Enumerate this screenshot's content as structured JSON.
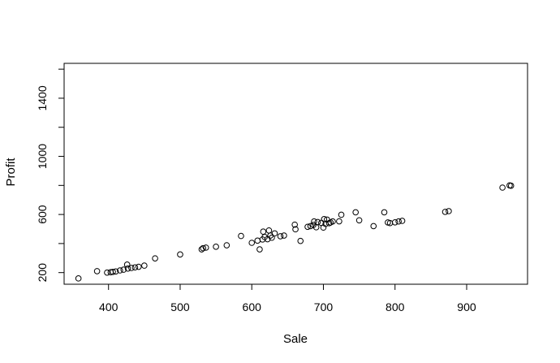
{
  "chart_data": {
    "type": "scatter",
    "xlabel": "Sale",
    "ylabel": "Profit",
    "xlim": [
      338,
      985
    ],
    "ylim": [
      120,
      1640
    ],
    "xticks": [
      400,
      500,
      600,
      700,
      800,
      900
    ],
    "yticks": [
      200,
      600,
      1000,
      1400
    ],
    "yminor": [
      400,
      800,
      1200,
      1600
    ],
    "grid": false,
    "legend": "none",
    "marker": "open-circle",
    "series": [
      {
        "points": [
          [
            358,
            160
          ],
          [
            384,
            210
          ],
          [
            398,
            200
          ],
          [
            403,
            203
          ],
          [
            406,
            205
          ],
          [
            410,
            208
          ],
          [
            416,
            215
          ],
          [
            421,
            220
          ],
          [
            426,
            255
          ],
          [
            427,
            228
          ],
          [
            432,
            232
          ],
          [
            437,
            236
          ],
          [
            442,
            240
          ],
          [
            450,
            248
          ],
          [
            465,
            298
          ],
          [
            500,
            325
          ],
          [
            530,
            360
          ],
          [
            532,
            368
          ],
          [
            536,
            372
          ],
          [
            550,
            378
          ],
          [
            565,
            388
          ],
          [
            585,
            452
          ],
          [
            600,
            405
          ],
          [
            608,
            420
          ],
          [
            611,
            360
          ],
          [
            615,
            428
          ],
          [
            616,
            482
          ],
          [
            618,
            445
          ],
          [
            622,
            430
          ],
          [
            624,
            490
          ],
          [
            626,
            455
          ],
          [
            628,
            440
          ],
          [
            632,
            470
          ],
          [
            640,
            450
          ],
          [
            645,
            455
          ],
          [
            660,
            530
          ],
          [
            661,
            498
          ],
          [
            668,
            418
          ],
          [
            678,
            515
          ],
          [
            682,
            520
          ],
          [
            686,
            528
          ],
          [
            687,
            552
          ],
          [
            690,
            512
          ],
          [
            692,
            548
          ],
          [
            697,
            542
          ],
          [
            700,
            510
          ],
          [
            701,
            568
          ],
          [
            703,
            535
          ],
          [
            705,
            565
          ],
          [
            708,
            540
          ],
          [
            710,
            545
          ],
          [
            713,
            552
          ],
          [
            722,
            553
          ],
          [
            725,
            598
          ],
          [
            745,
            615
          ],
          [
            750,
            560
          ],
          [
            770,
            520
          ],
          [
            785,
            615
          ],
          [
            790,
            545
          ],
          [
            793,
            541
          ],
          [
            800,
            546
          ],
          [
            805,
            552
          ],
          [
            810,
            556
          ],
          [
            870,
            618
          ],
          [
            875,
            623
          ],
          [
            950,
            785
          ],
          [
            960,
            800
          ],
          [
            962,
            798
          ]
        ]
      }
    ]
  }
}
